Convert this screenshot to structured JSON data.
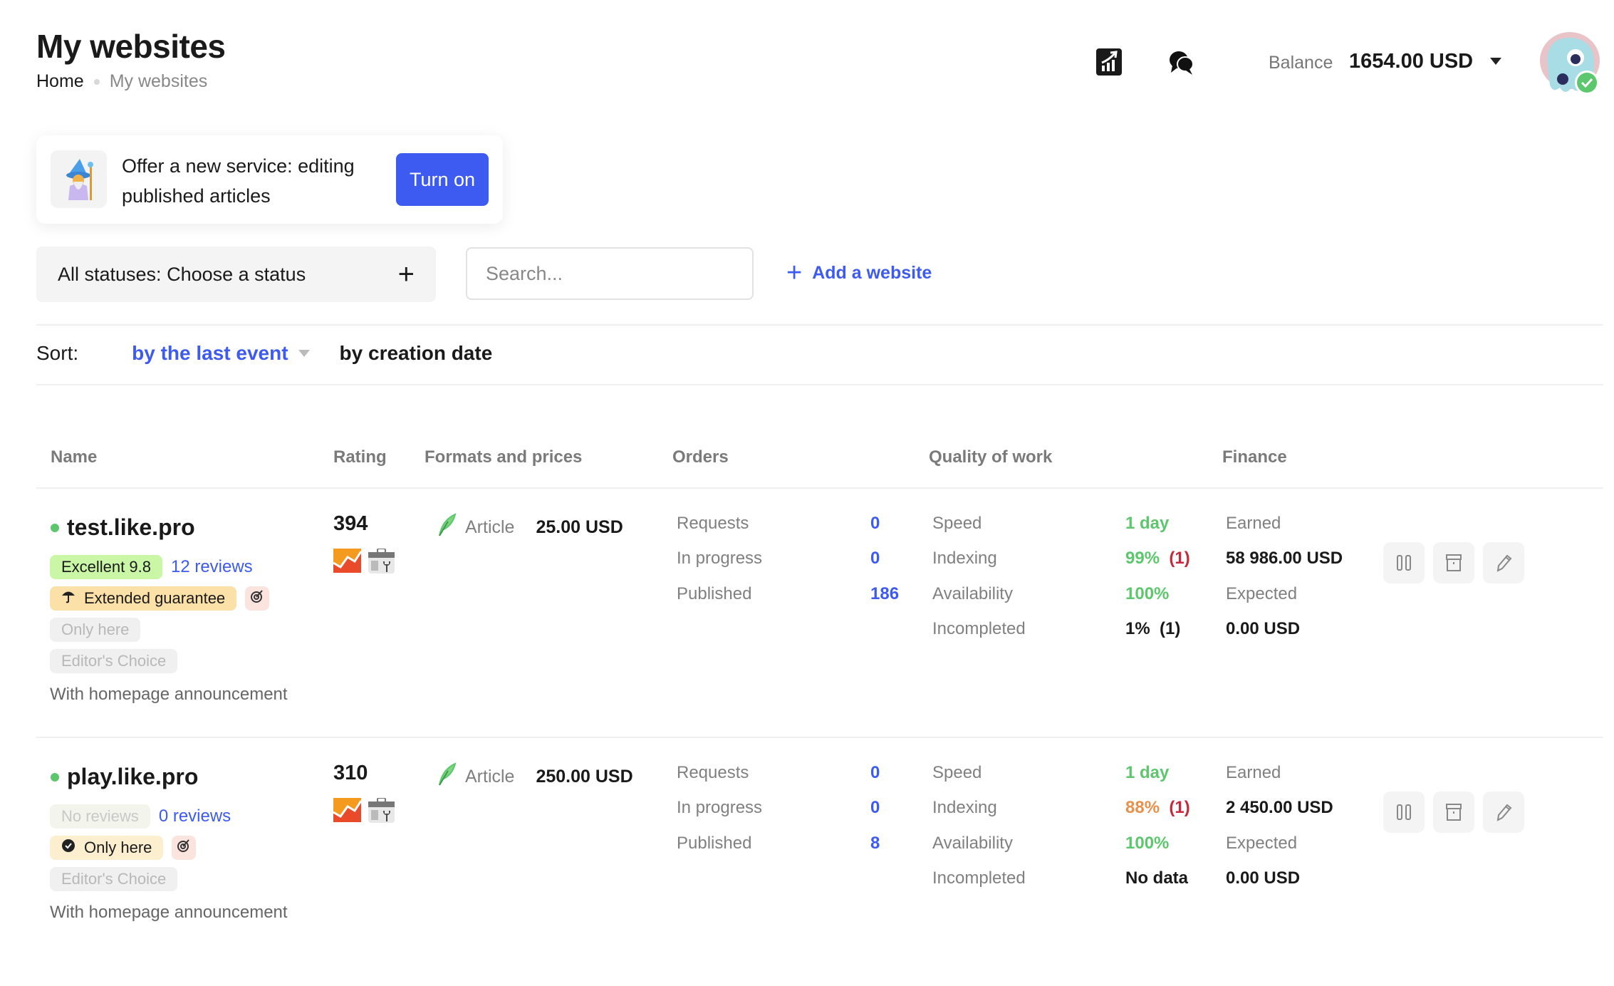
{
  "header": {
    "title": "My websites",
    "breadcrumb": [
      "Home",
      "My websites"
    ],
    "balance_label": "Balance",
    "balance_value": "1654.00 USD"
  },
  "promo": {
    "text": "Offer a new service: editing published articles",
    "button": "Turn on"
  },
  "filters": {
    "status_label": "All statuses:",
    "status_value": "Choose a status",
    "search_placeholder": "Search...",
    "add_website": "Add a website"
  },
  "sort": {
    "label": "Sort:",
    "options": [
      "by the last event",
      "by creation date"
    ]
  },
  "table": {
    "columns": [
      "Name",
      "Rating",
      "Formats and prices",
      "Orders",
      "Quality of work",
      "Finance"
    ],
    "order_labels": [
      "Requests",
      "In progress",
      "Published"
    ],
    "quality_labels": [
      "Speed",
      "Indexing",
      "Availability",
      "Incompleted"
    ],
    "finance_labels": [
      "Earned",
      "Expected"
    ],
    "rows": [
      {
        "name": "test.like.pro",
        "rating": "394",
        "rating_badge": "Excellent 9.8",
        "reviews": "12 reviews",
        "guarantee": "Extended guarantee",
        "only_here": "Only here",
        "editors_choice": "Editor's Choice",
        "homepage": "With homepage announcement",
        "format": "Article",
        "price": "25.00 USD",
        "requests": "0",
        "in_progress": "0",
        "published": "186",
        "speed": "1 day",
        "indexing": "99%",
        "indexing_count": "(1)",
        "availability": "100%",
        "incompleted": "1%  (1)",
        "earned": "58 986.00 USD",
        "expected": "0.00 USD"
      },
      {
        "name": "play.like.pro",
        "rating": "310",
        "rating_badge": "No reviews",
        "reviews": "0 reviews",
        "only_here": "Only here",
        "editors_choice": "Editor's Choice",
        "homepage": "With homepage announcement",
        "format": "Article",
        "price": "250.00 USD",
        "requests": "0",
        "in_progress": "0",
        "published": "8",
        "speed": "1 day",
        "indexing": "88%",
        "indexing_count": "(1)",
        "availability": "100%",
        "incompleted": "No data",
        "earned": "2 450.00 USD",
        "expected": "0.00 USD"
      }
    ]
  },
  "colors": {
    "accent": "#3d5af1",
    "good": "#5cc76c",
    "warn": "#e8914a",
    "bad": "#c8283c"
  }
}
